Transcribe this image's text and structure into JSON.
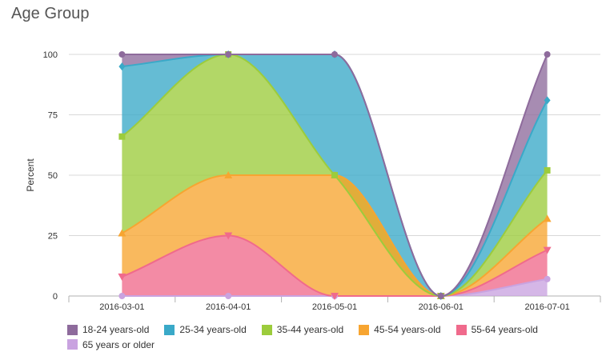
{
  "chart_data": {
    "type": "area",
    "stacked": true,
    "title": "Age Group",
    "xlabel": "",
    "ylabel": "Percent",
    "ylim": [
      0,
      100
    ],
    "yticks": [
      "0",
      "25",
      "50",
      "75",
      "100"
    ],
    "categories": [
      "2016-03-01",
      "2016-04-01",
      "2016-05-01",
      "2016-06-01",
      "2016-07-01"
    ],
    "legend_position": "bottom",
    "series": [
      {
        "name": "18-24 years-old",
        "color": "#8e6b9c",
        "marker": "circle",
        "values": [
          5,
          0,
          0,
          0,
          19
        ],
        "cumulative": [
          100,
          100,
          100,
          0,
          100
        ]
      },
      {
        "name": "25-34 years-old",
        "color": "#3aa9c8",
        "marker": "diamond",
        "values": [
          29,
          0,
          50,
          0,
          29
        ],
        "cumulative": [
          95,
          100,
          100,
          0,
          81
        ]
      },
      {
        "name": "35-44 years-old",
        "color": "#9ccc3c",
        "marker": "square",
        "values": [
          40,
          50,
          0,
          0,
          20
        ],
        "cumulative": [
          66,
          100,
          50,
          0,
          52
        ]
      },
      {
        "name": "45-54 years-old",
        "color": "#f7a531",
        "marker": "triangle",
        "values": [
          18,
          25,
          50,
          0,
          13
        ],
        "cumulative": [
          26,
          50,
          50,
          0,
          32
        ]
      },
      {
        "name": "55-64 years-old",
        "color": "#f06a8c",
        "marker": "triangle-down",
        "values": [
          8,
          25,
          0,
          0,
          12
        ],
        "cumulative": [
          8,
          25,
          0,
          0,
          19
        ]
      },
      {
        "name": "65 years or older",
        "color": "#c9a3e0",
        "marker": "circle",
        "values": [
          0,
          0,
          0,
          0,
          7
        ],
        "cumulative": [
          0,
          0,
          0,
          0,
          7
        ]
      }
    ]
  }
}
